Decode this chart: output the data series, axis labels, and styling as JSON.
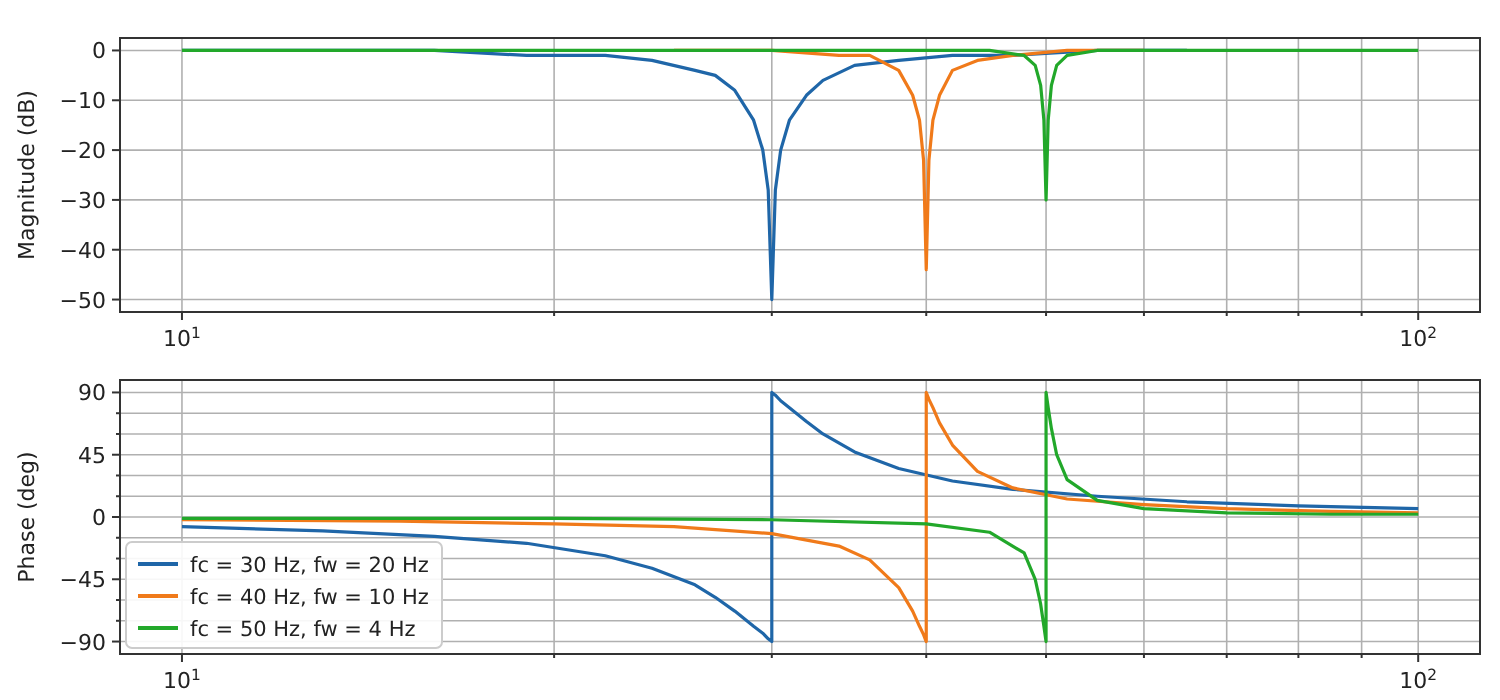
{
  "chart_data": [
    {
      "type": "line",
      "ylabel": "Magnitude (dB)",
      "log": "x",
      "grid": true,
      "xlim": [
        8.91,
        112.2
      ],
      "ylim": [
        -52.5,
        2.5
      ],
      "xticks": [
        {
          "value": 10,
          "label": "10$^{1}$"
        },
        {
          "value": 20,
          "label": null
        },
        {
          "value": 30,
          "label": null
        },
        {
          "value": 40,
          "label": null
        },
        {
          "value": 50,
          "label": null
        },
        {
          "value": 60,
          "label": null
        },
        {
          "value": 70,
          "label": null
        },
        {
          "value": 80,
          "label": null
        },
        {
          "value": 90,
          "label": null
        },
        {
          "value": 100,
          "label": "10$^{2}$"
        }
      ],
      "yticks": [
        -50,
        -40,
        -30,
        -20,
        -10,
        0
      ],
      "series": [
        {
          "color": "#1f66a8",
          "x": [
            10,
            13,
            16,
            19,
            22,
            24,
            26,
            27,
            28,
            29,
            29.5,
            29.8,
            30,
            30.2,
            30.5,
            31,
            32,
            33,
            35,
            38,
            42,
            47,
            55,
            65
          ],
          "values": [
            0,
            0,
            0,
            -1,
            -1,
            -2,
            -4,
            -5,
            -8,
            -14,
            -20,
            -28,
            -50,
            -28,
            -20,
            -14,
            -9,
            -6,
            -3,
            -2,
            -1,
            -1,
            0,
            0
          ]
        },
        {
          "color": "#f07a1a",
          "x": [
            25,
            30,
            34,
            36,
            38,
            39,
            39.5,
            39.8,
            40,
            40.2,
            40.5,
            41,
            42,
            44,
            47,
            52,
            60
          ],
          "values": [
            0,
            0,
            -1,
            -1,
            -4,
            -9,
            -14,
            -22,
            -44,
            -22,
            -14,
            -9,
            -4,
            -2,
            -1,
            0,
            0
          ]
        },
        {
          "color": "#22a82a",
          "x": [
            10,
            20,
            30,
            40,
            45,
            48,
            49,
            49.5,
            49.8,
            50,
            50.2,
            50.5,
            51,
            52,
            55,
            60,
            70,
            85,
            100
          ],
          "values": [
            0,
            0,
            0,
            0,
            0,
            -1,
            -3,
            -7,
            -14,
            -30,
            -14,
            -7,
            -3,
            -1,
            0,
            0,
            0,
            0,
            0
          ]
        }
      ]
    },
    {
      "type": "line",
      "ylabel": "Phase (deg)",
      "log": "x",
      "grid": true,
      "legend": "bottom left",
      "xlim": [
        8.91,
        112.2
      ],
      "ylim": [
        -99,
        99
      ],
      "xticks": [
        {
          "value": 10,
          "label": "10$^{1}$"
        },
        {
          "value": 20,
          "label": null
        },
        {
          "value": 30,
          "label": null
        },
        {
          "value": 40,
          "label": null
        },
        {
          "value": 50,
          "label": null
        },
        {
          "value": 60,
          "label": null
        },
        {
          "value": 70,
          "label": null
        },
        {
          "value": 80,
          "label": null
        },
        {
          "value": 90,
          "label": null
        },
        {
          "value": 100,
          "label": "10$^{2}$"
        }
      ],
      "yticks": [
        -90,
        {
          "value": -75,
          "label": null
        },
        {
          "value": -60,
          "label": null
        },
        -45,
        {
          "value": -30,
          "label": null
        },
        {
          "value": -15,
          "label": null
        },
        0,
        {
          "value": 15,
          "label": null
        },
        {
          "value": 30,
          "label": null
        },
        45,
        {
          "value": 60,
          "label": null
        },
        {
          "value": 75,
          "label": null
        },
        90
      ],
      "series": [
        {
          "name": "fc = 30 Hz, fw = 20 Hz",
          "color": "#1f66a8",
          "x": [
            10,
            13,
            16,
            19,
            22,
            24,
            26,
            27,
            28,
            29,
            29.5,
            29.8,
            30,
            30,
            30.2,
            30.5,
            31,
            32,
            33,
            35,
            38,
            42,
            47,
            55,
            65,
            80,
            100
          ],
          "values": [
            -7,
            -10,
            -14,
            -19,
            -28,
            -37,
            -49,
            -58,
            -68,
            -79,
            -84,
            -88,
            -90,
            90,
            88,
            84,
            79,
            69,
            60,
            47,
            35,
            26,
            20,
            15,
            11,
            8,
            6
          ]
        },
        {
          "name": "fc = 40 Hz, fw = 10 Hz",
          "color": "#f07a1a",
          "x": [
            10,
            15,
            20,
            25,
            30,
            34,
            36,
            38,
            39,
            39.5,
            39.8,
            40,
            40,
            40.2,
            40.5,
            41,
            42,
            44,
            47,
            52,
            60,
            70,
            85,
            100
          ],
          "values": [
            -2,
            -3,
            -5,
            -7,
            -12,
            -21,
            -31,
            -51,
            -68,
            -79,
            -85,
            -90,
            90,
            85,
            79,
            68,
            52,
            33,
            21,
            13,
            9,
            6,
            4,
            3
          ]
        },
        {
          "name": "fc = 50 Hz, fw = 4 Hz",
          "color": "#22a82a",
          "x": [
            10,
            20,
            30,
            40,
            45,
            48,
            49,
            49.5,
            49.8,
            50,
            50,
            50.2,
            50.5,
            51,
            52,
            55,
            60,
            70,
            85,
            100
          ],
          "values": [
            -1,
            -1,
            -2,
            -5,
            -11,
            -26,
            -45,
            -63,
            -79,
            -90,
            90,
            79,
            64,
            45,
            27,
            12,
            6,
            3,
            2,
            2
          ]
        }
      ]
    }
  ]
}
